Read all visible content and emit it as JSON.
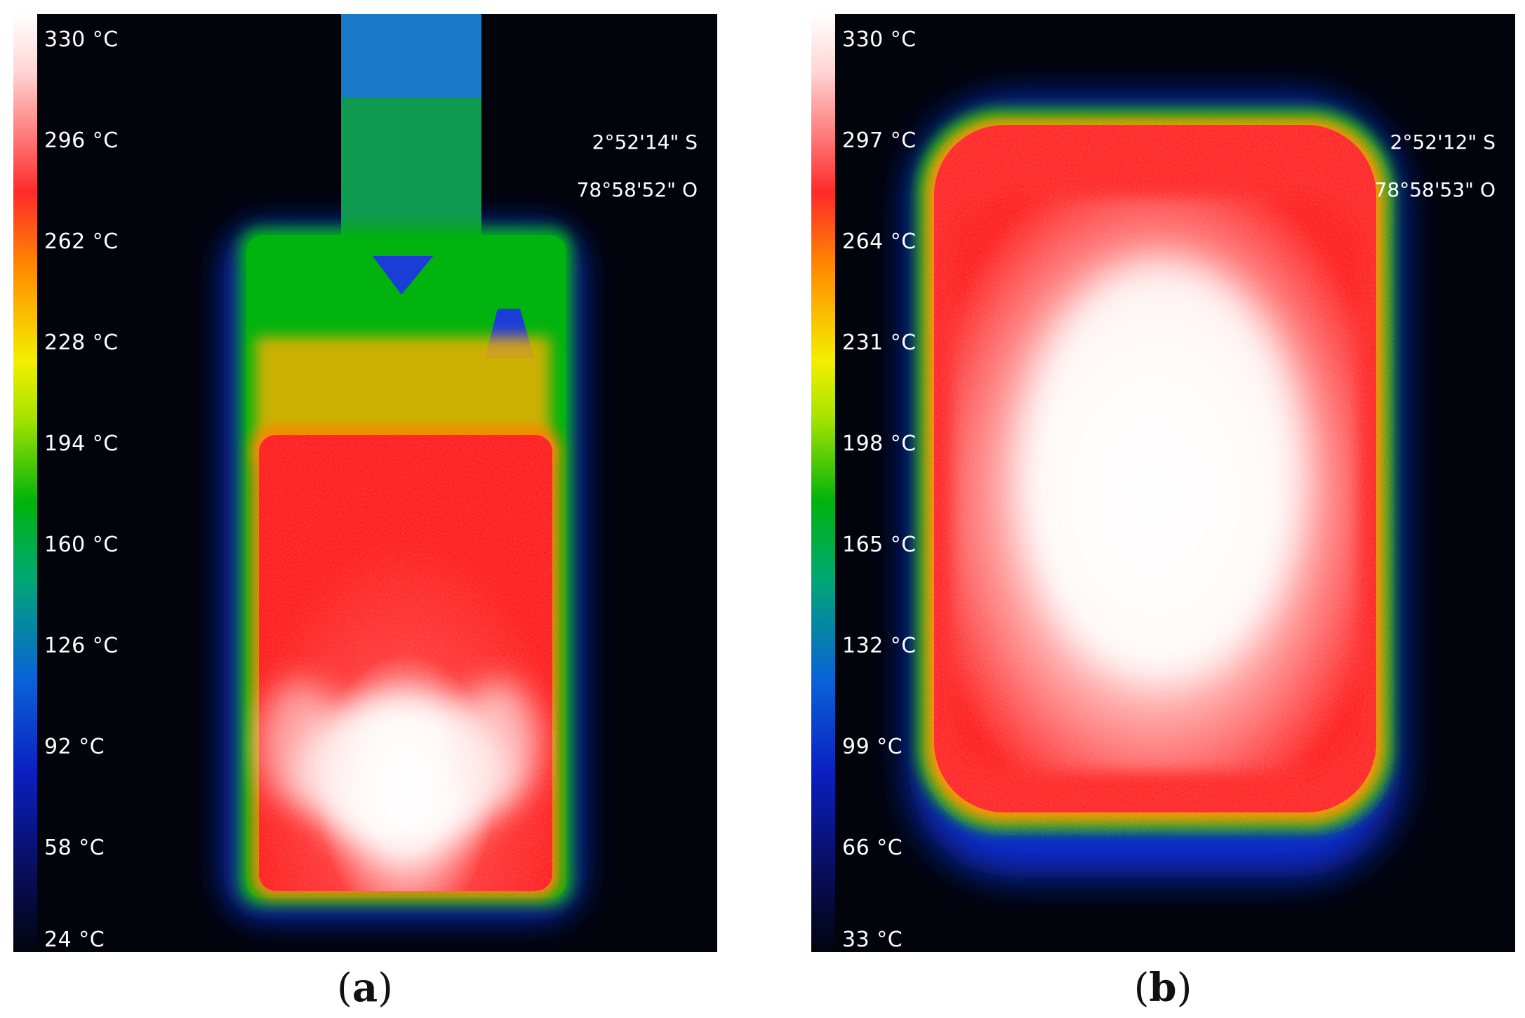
{
  "panels": [
    {
      "id": "a",
      "caption_letter": "a",
      "scale_ticks": [
        "330 °C",
        "296 °C",
        "262 °C",
        "228 °C",
        "194 °C",
        "160 °C",
        "126 °C",
        "92 °C",
        "58 °C",
        "24 °C"
      ],
      "gps": [
        "2°52'14\" S",
        "78°58'52\" O"
      ]
    },
    {
      "id": "b",
      "caption_letter": "b",
      "scale_ticks": [
        "330 °C",
        "297 °C",
        "264 °C",
        "231 °C",
        "198 °C",
        "165 °C",
        "132 °C",
        "99 °C",
        "66 °C",
        "33 °C"
      ],
      "gps": [
        "2°52'12\" S",
        "78°58'53\" O"
      ]
    }
  ],
  "colors": {
    "background": "#02040c",
    "cold": "#0b1fbf",
    "cool": "#00b20c",
    "warm": "#f4ef00",
    "hot": "#ff2a2a",
    "hottest": "#ffffff"
  }
}
